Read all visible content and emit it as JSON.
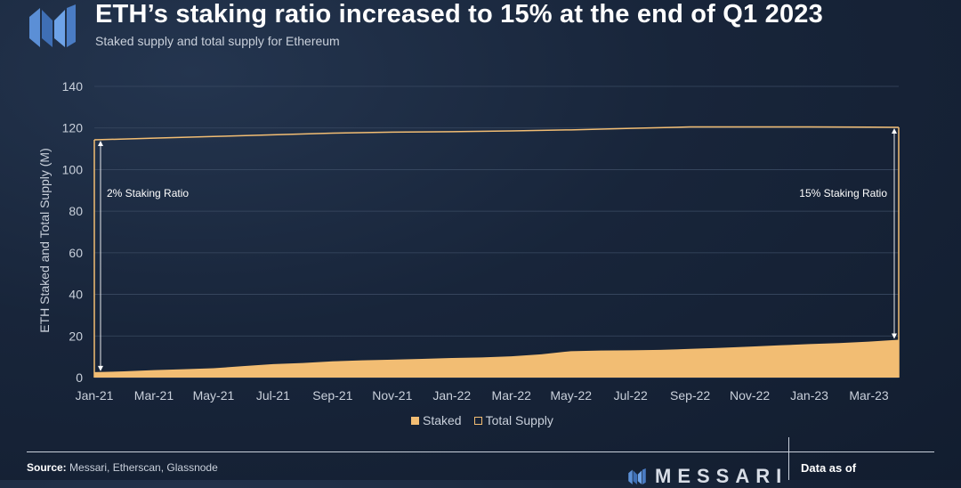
{
  "header": {
    "title": "ETH’s staking ratio increased to 15% at the end of Q1 2023",
    "subtitle": "Staked supply and total supply for Ethereum"
  },
  "legend": {
    "staked": "Staked",
    "total_supply": "Total Supply"
  },
  "footer": {
    "source_label": "Source:",
    "source_text": "Messari, Etherscan, Glassnode",
    "brand": "MESSARI",
    "data_as_of": "Data as of"
  },
  "colors": {
    "accent": "#f2bd73",
    "background": "#18253a",
    "text_muted": "#c9d0db"
  },
  "chart_data": {
    "type": "area",
    "title": "ETH’s staking ratio increased to 15% at the end of Q1 2023",
    "subtitle": "Staked supply and total supply for Ethereum",
    "xlabel": "",
    "ylabel": "ETH Staked and Total Supply (M)",
    "ylim": [
      0,
      140
    ],
    "yticks": [
      0,
      20,
      40,
      60,
      80,
      100,
      120,
      140
    ],
    "x_tick_labels": [
      "Jan-21",
      "Mar-21",
      "May-21",
      "Jul-21",
      "Sep-21",
      "Nov-21",
      "Jan-22",
      "Mar-22",
      "May-22",
      "Jul-22",
      "Sep-22",
      "Nov-22",
      "Jan-23",
      "Mar-23"
    ],
    "x_tick_months": [
      0,
      2,
      4,
      6,
      8,
      10,
      12,
      14,
      16,
      18,
      20,
      22,
      24,
      26
    ],
    "x_range_months": [
      0,
      27
    ],
    "grid": true,
    "series": [
      {
        "name": "Staked",
        "style": "area",
        "x_months": [
          0,
          1,
          2,
          3,
          4,
          5,
          6,
          7,
          8,
          9,
          10,
          11,
          12,
          13,
          14,
          15,
          16,
          17,
          18,
          19,
          20,
          21,
          22,
          23,
          24,
          25,
          26,
          27
        ],
        "values": [
          2.6,
          3.0,
          3.6,
          4.0,
          4.5,
          5.5,
          6.5,
          7.0,
          7.8,
          8.3,
          8.6,
          9.0,
          9.4,
          9.7,
          10.2,
          11.2,
          12.7,
          13.0,
          13.1,
          13.3,
          13.8,
          14.3,
          14.9,
          15.5,
          16.1,
          16.6,
          17.3,
          18.2
        ]
      },
      {
        "name": "Total Supply",
        "style": "line",
        "x_months": [
          0,
          2,
          4,
          6,
          8,
          10,
          12,
          14,
          16,
          18,
          20,
          22,
          24,
          26,
          27
        ],
        "values": [
          114.3,
          115.1,
          115.9,
          116.7,
          117.5,
          118.0,
          118.2,
          118.6,
          119.1,
          119.8,
          120.5,
          120.5,
          120.5,
          120.4,
          120.3
        ]
      }
    ],
    "annotations": [
      {
        "text": "2% Staking Ratio",
        "x_month": 0,
        "position": "left"
      },
      {
        "text": "15% Staking Ratio",
        "x_month": 27,
        "position": "right"
      }
    ]
  }
}
